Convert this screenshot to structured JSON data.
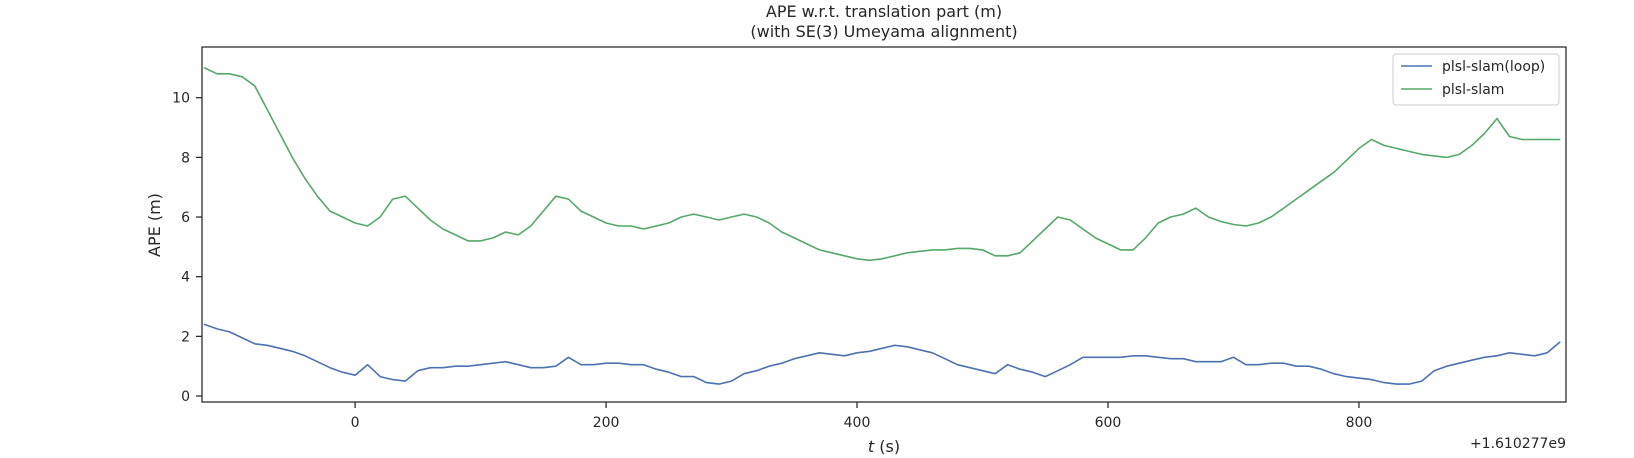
{
  "chart_data": {
    "type": "line",
    "title": "APE w.r.t. translation part (m)",
    "subtitle": "(with SE(3) Umeyama alignment)",
    "xlabel_italic": "t",
    "xlabel_unit": " (s)",
    "ylabel": "APE (m)",
    "x_offset_text": "+1.610277e9",
    "xlim": [
      -122,
      965
    ],
    "ylim": [
      -0.2,
      11.7
    ],
    "xticks": [
      0,
      200,
      400,
      600,
      800
    ],
    "xtick_labels": [
      "0",
      "200",
      "400",
      "600",
      "800"
    ],
    "yticks": [
      0,
      2,
      4,
      6,
      8,
      10
    ],
    "ytick_labels": [
      "0",
      "2",
      "4",
      "6",
      "8",
      "10"
    ],
    "grid": false,
    "legend_position": "top-right",
    "series": [
      {
        "name": "plsl-slam(loop)",
        "color": "#4c72b0",
        "x": [
          -120,
          -110,
          -100,
          -90,
          -80,
          -70,
          -60,
          -50,
          -40,
          -30,
          -20,
          -10,
          0,
          10,
          20,
          30,
          40,
          50,
          60,
          70,
          80,
          90,
          100,
          110,
          120,
          130,
          140,
          150,
          160,
          170,
          180,
          190,
          200,
          210,
          220,
          230,
          240,
          250,
          260,
          270,
          280,
          290,
          300,
          310,
          320,
          330,
          340,
          350,
          360,
          370,
          380,
          390,
          400,
          410,
          420,
          430,
          440,
          450,
          460,
          470,
          480,
          490,
          500,
          510,
          520,
          530,
          540,
          550,
          560,
          570,
          580,
          590,
          600,
          610,
          620,
          630,
          640,
          650,
          660,
          670,
          680,
          690,
          700,
          710,
          720,
          730,
          740,
          750,
          760,
          770,
          780,
          790,
          800,
          810,
          820,
          830,
          840,
          850,
          860,
          870,
          880,
          890,
          900,
          910,
          920,
          930,
          940,
          950,
          960
        ],
        "y": [
          2.4,
          2.25,
          2.15,
          1.95,
          1.75,
          1.7,
          1.6,
          1.5,
          1.35,
          1.15,
          0.95,
          0.8,
          0.7,
          1.05,
          0.65,
          0.55,
          0.5,
          0.85,
          0.95,
          0.95,
          1.0,
          1.0,
          1.05,
          1.1,
          1.15,
          1.05,
          0.95,
          0.95,
          1.0,
          1.3,
          1.05,
          1.05,
          1.1,
          1.1,
          1.05,
          1.05,
          0.9,
          0.8,
          0.65,
          0.65,
          0.45,
          0.4,
          0.5,
          0.75,
          0.85,
          1.0,
          1.1,
          1.25,
          1.35,
          1.45,
          1.4,
          1.35,
          1.45,
          1.5,
          1.6,
          1.7,
          1.65,
          1.55,
          1.45,
          1.25,
          1.05,
          0.95,
          0.85,
          0.75,
          1.05,
          0.9,
          0.8,
          0.65,
          0.85,
          1.05,
          1.3,
          1.3,
          1.3,
          1.3,
          1.35,
          1.35,
          1.3,
          1.25,
          1.25,
          1.15,
          1.15,
          1.15,
          1.3,
          1.05,
          1.05,
          1.1,
          1.1,
          1.0,
          1.0,
          0.9,
          0.75,
          0.65,
          0.6,
          0.55,
          0.45,
          0.4,
          0.4,
          0.5,
          0.85,
          1.0,
          1.1,
          1.2,
          1.3,
          1.35,
          1.45,
          1.4,
          1.35,
          1.45,
          1.8
        ]
      },
      {
        "name": "plsl-slam",
        "color": "#55a868",
        "x": [
          -120,
          -110,
          -100,
          -90,
          -80,
          -70,
          -60,
          -50,
          -40,
          -30,
          -20,
          -10,
          0,
          10,
          20,
          30,
          40,
          50,
          60,
          70,
          80,
          90,
          100,
          110,
          120,
          130,
          140,
          150,
          160,
          170,
          180,
          190,
          200,
          210,
          220,
          230,
          240,
          250,
          260,
          270,
          280,
          290,
          300,
          310,
          320,
          330,
          340,
          350,
          360,
          370,
          380,
          390,
          400,
          410,
          420,
          430,
          440,
          450,
          460,
          470,
          480,
          490,
          500,
          510,
          520,
          530,
          540,
          550,
          560,
          570,
          580,
          590,
          600,
          610,
          620,
          630,
          640,
          650,
          660,
          670,
          680,
          690,
          700,
          710,
          720,
          730,
          740,
          750,
          760,
          770,
          780,
          790,
          800,
          810,
          820,
          830,
          840,
          850,
          860,
          870,
          880,
          890,
          900,
          910,
          920,
          930,
          940,
          950,
          960
        ],
        "y": [
          11.0,
          10.8,
          10.8,
          10.7,
          10.4,
          9.6,
          8.8,
          8.0,
          7.3,
          6.7,
          6.2,
          6.0,
          5.8,
          5.7,
          6.0,
          6.6,
          6.7,
          6.3,
          5.9,
          5.6,
          5.4,
          5.2,
          5.2,
          5.3,
          5.5,
          5.4,
          5.7,
          6.2,
          6.7,
          6.6,
          6.2,
          6.0,
          5.8,
          5.7,
          5.7,
          5.6,
          5.7,
          5.8,
          6.0,
          6.1,
          6.0,
          5.9,
          6.0,
          6.1,
          6.0,
          5.8,
          5.5,
          5.3,
          5.1,
          4.9,
          4.8,
          4.7,
          4.6,
          4.55,
          4.6,
          4.7,
          4.8,
          4.85,
          4.9,
          4.9,
          4.95,
          4.95,
          4.9,
          4.7,
          4.7,
          4.8,
          5.2,
          5.6,
          6.0,
          5.9,
          5.6,
          5.3,
          5.1,
          4.9,
          4.9,
          5.3,
          5.8,
          6.0,
          6.1,
          6.3,
          6.0,
          5.85,
          5.75,
          5.7,
          5.8,
          6.0,
          6.3,
          6.6,
          6.9,
          7.2,
          7.5,
          7.9,
          8.3,
          8.6,
          8.4,
          8.3,
          8.2,
          8.1,
          8.05,
          8.0,
          8.1,
          8.4,
          8.8,
          9.3,
          8.7,
          8.6,
          8.6,
          8.6,
          8.6
        ]
      }
    ]
  }
}
